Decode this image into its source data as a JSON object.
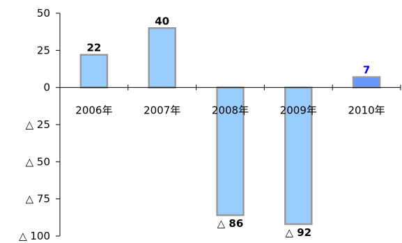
{
  "chart_data": {
    "type": "bar",
    "categories": [
      "2006年",
      "2007年",
      "2008年",
      "2009年",
      "2010年"
    ],
    "values": [
      22,
      40,
      -86,
      -92,
      7
    ],
    "data_labels": [
      "22",
      "40",
      "△ 86",
      "△ 92",
      "7"
    ],
    "yticks": [
      50,
      25,
      0,
      -25,
      -50,
      -75,
      -100
    ],
    "ytick_labels": [
      "50",
      "25",
      "0",
      "△ 25",
      "△ 50",
      "△ 75",
      "△ 100"
    ],
    "ylim": [
      -100,
      50
    ],
    "title": "",
    "xlabel": "",
    "ylabel": "",
    "grid": false,
    "colors": {
      "bar": "#99ccff",
      "bar_highlight": "#6699ff",
      "bar_border": "#999999",
      "axis": "#000000",
      "label": "#000000",
      "label_highlight": "#0000ff"
    },
    "highlight_index": 4
  }
}
